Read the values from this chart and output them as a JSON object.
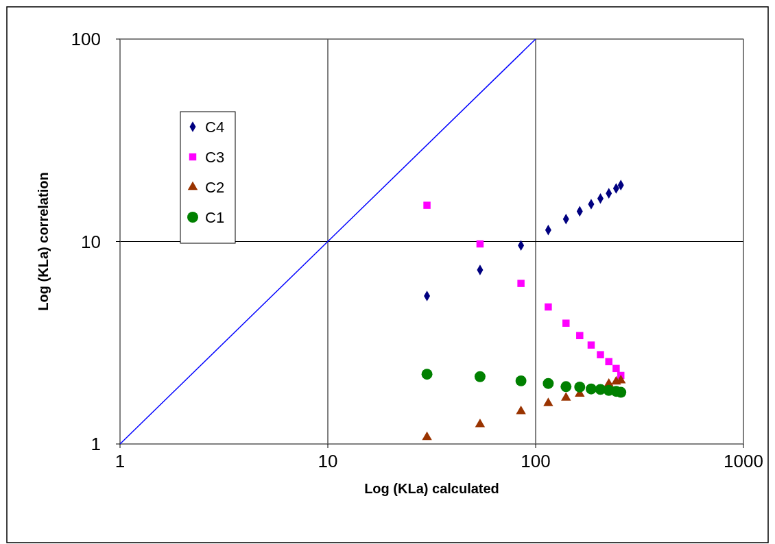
{
  "chart_data": {
    "type": "scatter",
    "xlabel": "Log (KLa) calculated",
    "ylabel": "Log (KLa) correlation",
    "log": "xy",
    "xlim": [
      1,
      1000
    ],
    "ylim": [
      1,
      100
    ],
    "xticks": [
      1,
      10,
      100,
      1000
    ],
    "yticks": [
      1,
      10,
      100
    ],
    "grid": true,
    "legend": "top left",
    "x": [
      30,
      54,
      85,
      115,
      140,
      163,
      185,
      205,
      225,
      244,
      257
    ],
    "series": [
      {
        "name": "C4",
        "color": "#000080",
        "marker": "diamond",
        "values": [
          5.38,
          7.24,
          9.56,
          11.4,
          12.9,
          14.1,
          15.3,
          16.3,
          17.3,
          18.3,
          19.0
        ]
      },
      {
        "name": "C3",
        "color": "#ff00ff",
        "marker": "square",
        "values": [
          15.1,
          9.73,
          6.21,
          4.75,
          3.95,
          3.43,
          3.08,
          2.76,
          2.55,
          2.36,
          2.18
        ]
      },
      {
        "name": "C2",
        "color": "#993300",
        "marker": "triangle",
        "values": [
          1.08,
          1.25,
          1.45,
          1.59,
          1.69,
          1.77,
          null,
          null,
          1.98,
          2.03,
          2.06
        ]
      },
      {
        "name": "C1",
        "color": "#008000",
        "marker": "circle",
        "values": [
          2.21,
          2.15,
          2.05,
          1.99,
          1.92,
          1.91,
          1.87,
          1.86,
          1.84,
          1.82,
          1.8
        ]
      },
      {
        "type": "line",
        "color": "#0000ff",
        "marker": "none",
        "x": [
          1,
          100
        ],
        "values": [
          1,
          100
        ]
      }
    ]
  }
}
